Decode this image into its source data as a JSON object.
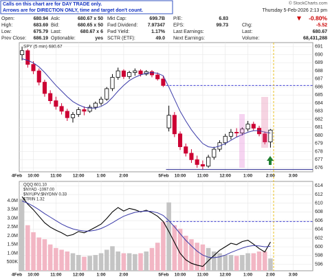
{
  "header": {
    "note": [
      "Calls on this chart are for DAY TRADE only.",
      "Arrows are for DIRECTION ONLY, time and target don't count."
    ],
    "watermark": "© StockCharts.com",
    "datetime": "Thursday 5-Feb-2026 2:13 pm"
  },
  "quote": {
    "rows": [
      [
        [
          "Open:",
          "680.94"
        ],
        [
          "Ask:",
          "680.67 x 50"
        ],
        [
          "Mkt Cap:",
          "699.7B"
        ],
        [
          "P/E:",
          "6.83"
        ],
        [
          "-0.80%"
        ]
      ],
      [
        [
          "High:",
          "683.69"
        ],
        [
          "Bid:",
          "680.65 x 50"
        ],
        [
          "Fwd Dividend:",
          "7.97347"
        ],
        [
          "EPS:",
          "99.73"
        ],
        [
          "Chg:",
          "-5.52"
        ]
      ],
      [
        [
          "Low:",
          "675.79"
        ],
        [
          "Last:",
          "680.67 x 6"
        ],
        [
          "Fwd Yield:",
          "1.17%"
        ],
        [
          "Last Earnings:"
        ],
        [
          "Last:",
          "680.67"
        ]
      ],
      [
        [
          "Prev Close:",
          "686.19"
        ],
        [
          "Optionable:",
          "yes"
        ],
        [
          "SCTR (ETF):",
          "49.0"
        ],
        [
          "Next Earnings:"
        ],
        [
          "Volume:",
          "68,431,288"
        ]
      ]
    ]
  },
  "chart_data": [
    {
      "type": "candlestick",
      "legend": "SPY (5 min) 680.67",
      "categories": [
        "4Feb",
        null,
        "10:00",
        null,
        null,
        null,
        "11:00",
        null,
        null,
        null,
        "12:00",
        null,
        null,
        null,
        "1:00",
        null,
        null,
        null,
        "2:00",
        null,
        null,
        null,
        null,
        null,
        null,
        null,
        "5Feb",
        null,
        "10:00",
        null,
        null,
        null,
        "11:00",
        null,
        null,
        null,
        "12:00",
        null,
        null,
        null,
        "1:00",
        null,
        null,
        null,
        "2:00",
        null,
        null,
        null,
        "3:00",
        null,
        null,
        null
      ],
      "open": [
        690.0,
        690.5,
        688.8,
        688.0,
        686.6,
        685.2,
        684.3,
        683.6,
        683.0,
        682.2,
        682.6,
        683.2,
        683.0,
        683.5,
        684.0,
        684.5,
        685.8,
        687.2,
        688.0,
        687.3,
        687.8,
        688.0,
        687.6,
        687.9,
        687.5,
        687.0,
        680.94,
        682.5,
        680.2,
        678.6,
        677.8,
        677.0,
        676.4,
        676.2,
        677.3,
        678.3,
        679.1,
        679.9,
        680.4,
        680.3,
        680.8,
        681.4,
        680.9,
        680.2,
        679.2,
        null,
        null,
        null,
        null,
        null,
        null,
        null
      ],
      "high": [
        691.0,
        690.7,
        689.2,
        688.3,
        686.9,
        685.6,
        684.8,
        684.0,
        683.3,
        682.9,
        683.5,
        683.6,
        683.8,
        684.2,
        684.8,
        686.0,
        687.6,
        688.4,
        688.2,
        688.0,
        688.3,
        688.2,
        688.1,
        688.1,
        687.8,
        687.4,
        683.69,
        682.9,
        680.5,
        679.0,
        678.3,
        677.5,
        676.9,
        677.6,
        678.6,
        679.4,
        680.2,
        680.8,
        680.9,
        681.0,
        681.8,
        681.7,
        681.2,
        680.5,
        680.8,
        null,
        null,
        null,
        null,
        null,
        null,
        null
      ],
      "low": [
        689.3,
        688.4,
        687.6,
        686.2,
        684.8,
        683.9,
        683.2,
        682.6,
        681.8,
        681.6,
        682.3,
        682.5,
        682.8,
        683.2,
        683.7,
        684.3,
        685.5,
        686.9,
        687.0,
        687.0,
        687.4,
        687.3,
        687.4,
        687.2,
        686.8,
        686.0,
        680.5,
        679.8,
        678.2,
        677.4,
        676.6,
        676.0,
        675.79,
        676.0,
        677.0,
        678.0,
        678.8,
        679.5,
        679.8,
        680.0,
        680.5,
        680.6,
        679.9,
        678.9,
        678.5,
        null,
        null,
        null,
        null,
        null,
        null,
        null
      ],
      "close": [
        690.5,
        688.8,
        688.0,
        686.6,
        685.2,
        684.3,
        683.6,
        683.0,
        682.2,
        682.6,
        683.2,
        683.0,
        683.5,
        684.0,
        684.5,
        685.8,
        687.2,
        688.0,
        687.3,
        687.8,
        688.0,
        687.6,
        687.9,
        687.5,
        687.0,
        686.19,
        682.5,
        680.2,
        678.6,
        677.8,
        677.0,
        676.4,
        676.2,
        677.3,
        678.3,
        679.1,
        679.9,
        680.4,
        680.3,
        680.8,
        681.4,
        680.9,
        680.2,
        679.2,
        680.67,
        null,
        null,
        null,
        null,
        null,
        null,
        null
      ],
      "ma": [
        689.5,
        689.3,
        689.0,
        688.5,
        687.8,
        687.0,
        686.2,
        685.5,
        684.8,
        684.2,
        683.8,
        683.5,
        683.4,
        683.4,
        683.6,
        684.0,
        684.7,
        685.5,
        686.2,
        686.8,
        687.2,
        687.5,
        687.7,
        687.8,
        687.7,
        687.4,
        686.0,
        684.5,
        683.0,
        681.8,
        680.7,
        679.8,
        679.0,
        678.6,
        678.5,
        678.7,
        679.0,
        679.4,
        679.8,
        680.1,
        680.4,
        680.6,
        680.6,
        680.4,
        680.3,
        null,
        null,
        null,
        null,
        null,
        null,
        null
      ],
      "up_color": "#000000",
      "down_color": "#cc0033",
      "ma_color": "#3a3aa8",
      "hlines": [
        {
          "value": 686.19,
          "style": "dashed",
          "color": "#3a3ad0"
        },
        {
          "value": 675.79,
          "style": "solid",
          "color": "#2a2a90"
        }
      ],
      "ylim": [
        675.5,
        691.5
      ],
      "yticks": [
        676,
        677,
        678,
        679,
        680,
        681,
        682,
        683,
        684,
        685,
        686,
        687,
        688,
        689,
        690,
        691
      ],
      "grid": true
    },
    {
      "type": "line",
      "legend": [
        "QQQ 601.10",
        "$NYAD -1097.00",
        "$NYUPV:$NYDNV 0.33",
        "$TRIN 1.32"
      ],
      "categories": [
        "4Feb",
        null,
        "10:00",
        null,
        null,
        null,
        "11:00",
        null,
        null,
        null,
        "12:00",
        null,
        null,
        null,
        "1:00",
        null,
        null,
        null,
        "2:00",
        null,
        null,
        null,
        null,
        null,
        null,
        null,
        "5Feb",
        null,
        "10:00",
        null,
        null,
        null,
        "11:00",
        null,
        null,
        null,
        "12:00",
        null,
        null,
        null,
        "1:00",
        null,
        null,
        null,
        "2:00",
        null,
        null,
        null,
        "3:00",
        null,
        null,
        null
      ],
      "values": [
        611.5,
        609.8,
        608.5,
        607.0,
        605.5,
        604.5,
        603.8,
        603.2,
        602.5,
        602.8,
        603.5,
        603.2,
        603.8,
        604.5,
        605.2,
        606.5,
        608.0,
        609.0,
        608.2,
        608.8,
        608.5,
        608.0,
        608.4,
        607.8,
        607.0,
        605.8,
        603.5,
        601.0,
        598.5,
        597.0,
        596.2,
        595.8,
        595.5,
        596.8,
        598.0,
        599.2,
        600.0,
        600.8,
        600.5,
        601.2,
        601.5,
        600.6,
        599.6,
        598.8,
        601.1,
        null,
        null,
        null,
        null,
        null,
        null,
        null
      ],
      "ma": [
        610.5,
        610.0,
        609.3,
        608.5,
        607.6,
        606.8,
        606.0,
        605.2,
        604.6,
        604.1,
        603.8,
        603.6,
        603.6,
        603.8,
        604.2,
        604.8,
        605.5,
        606.3,
        607.0,
        607.5,
        607.9,
        608.1,
        608.2,
        608.1,
        607.8,
        607.2,
        606.0,
        604.6,
        603.0,
        601.5,
        600.2,
        599.0,
        598.1,
        597.6,
        597.5,
        597.7,
        598.1,
        598.7,
        599.2,
        599.7,
        600.1,
        600.3,
        600.2,
        600.0,
        600.1,
        null,
        null,
        null,
        null,
        null,
        null,
        null
      ],
      "volume": [
        4100000,
        2600000,
        2200000,
        1900000,
        1800000,
        1500000,
        1300000,
        1200000,
        1100000,
        1000000,
        900000,
        800000,
        850000,
        900000,
        1000000,
        1200000,
        1400000,
        1100000,
        1000000,
        1000000,
        950000,
        1000000,
        1100000,
        1300000,
        1600000,
        2800000,
        3900000,
        2600000,
        2400000,
        2000000,
        1800000,
        1600000,
        1500000,
        1300000,
        1100000,
        1000000,
        900000,
        900000,
        850000,
        900000,
        1000000,
        1000000,
        1100000,
        1100000,
        700000,
        null,
        null,
        null,
        null,
        null,
        null,
        null
      ],
      "color": "#000000",
      "ma_color": "#3a3aa8",
      "up_volume_color": "#c4c4c4",
      "down_volume_color": "#f2b6c4",
      "hlines": [
        {
          "value": 605.8,
          "style": "dashed",
          "color": "#3a3ad0"
        }
      ],
      "ylim": [
        594.5,
        615
      ],
      "yticks": [
        596,
        598,
        600,
        602,
        604,
        606,
        608,
        610,
        612,
        614
      ],
      "volume_ylim": [
        0,
        5100000
      ],
      "volume_yticks": [
        {
          "value": 500000,
          "label": "500K"
        },
        {
          "value": 1000000,
          "label": "1.0M"
        },
        {
          "value": 1500000,
          "label": "1.5M"
        },
        {
          "value": 2000000,
          "label": "2.0M"
        },
        {
          "value": 2500000,
          "label": "2.5M"
        },
        {
          "value": 3000000,
          "label": "3.0M"
        },
        {
          "value": 3500000,
          "label": "3.5M"
        },
        {
          "value": 4000000,
          "label": "4.0M"
        }
      ],
      "grid": true
    }
  ]
}
